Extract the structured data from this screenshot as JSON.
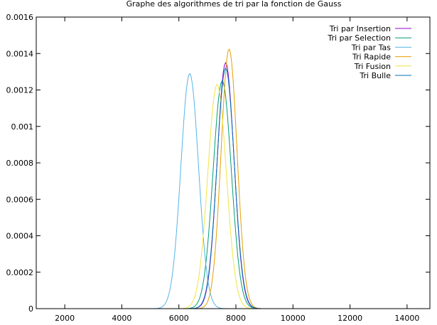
{
  "chart_data": {
    "type": "line",
    "title": "Graphe des algorithmes de tri par la fonction de Gauss",
    "xlabel": "",
    "ylabel": "",
    "xlim": [
      1000,
      14800
    ],
    "ylim": [
      0,
      0.0016
    ],
    "x_ticks": [
      2000,
      4000,
      6000,
      8000,
      10000,
      12000,
      14000
    ],
    "x_tick_labels": [
      "2000",
      "4000",
      "6000",
      "8000",
      "10000",
      "12000",
      "14000"
    ],
    "y_ticks": [
      0,
      0.0002,
      0.0004,
      0.0006,
      0.0008,
      0.001,
      0.0012,
      0.0014,
      0.0016
    ],
    "y_tick_labels": [
      "0",
      "0.0002",
      "0.0004",
      "0.0006",
      "0.0008",
      "0.001",
      "0.0012",
      "0.0014",
      "0.0016"
    ],
    "grid": false,
    "legend_position": "top-right",
    "series": [
      {
        "name": "Tri par Insertion",
        "color": "#9400d3",
        "mean": 7640,
        "peak": 0.00135
      },
      {
        "name": "Tri par Selection",
        "color": "#009e73",
        "mean": 7520,
        "peak": 0.00125
      },
      {
        "name": "Tri par Tas",
        "color": "#56b4e9",
        "mean": 6380,
        "peak": 0.00129
      },
      {
        "name": "Tri Rapide",
        "color": "#e69f00",
        "mean": 7760,
        "peak": 0.001425
      },
      {
        "name": "Tri Fusion",
        "color": "#f0e442",
        "mean": 7340,
        "peak": 0.00123
      },
      {
        "name": "Tri Bulle",
        "color": "#0072b2",
        "mean": 7640,
        "peak": 0.00132
      }
    ]
  }
}
